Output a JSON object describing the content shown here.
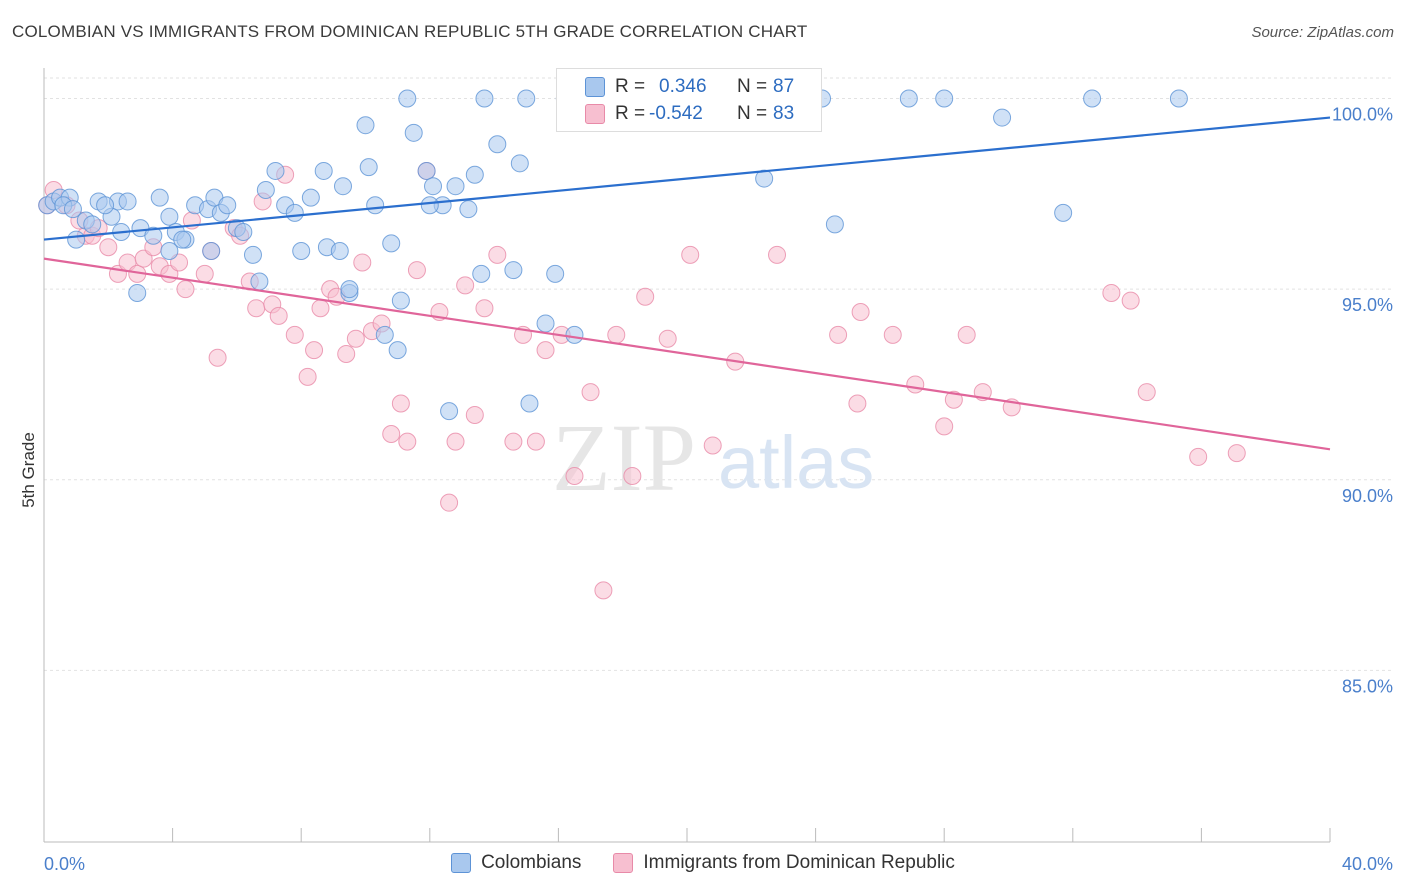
{
  "title": "COLOMBIAN VS IMMIGRANTS FROM DOMINICAN REPUBLIC 5TH GRADE CORRELATION CHART",
  "source": "Source: ZipAtlas.com",
  "watermark": {
    "zip": "ZIP",
    "atlas": "atlas"
  },
  "colors": {
    "blue_fill": "#a9c8ee",
    "blue_stroke": "#5d93d6",
    "blue_line": "#2b6fce",
    "pink_fill": "#f7bfd0",
    "pink_stroke": "#e88aa8",
    "pink_line": "#e0659a",
    "axis_label": "#4a7fcb",
    "grid": "#e2e2e2"
  },
  "stats": {
    "blue": {
      "r_label": "R =",
      "r_value": "0.346",
      "n_label": "N =",
      "n_value": "87"
    },
    "pink": {
      "r_label": "R =",
      "r_value": "-0.542",
      "n_label": "N =",
      "n_value": "83"
    }
  },
  "legend": {
    "blue": "Colombians",
    "pink": "Immigrants from Dominican Republic"
  },
  "chart_data": {
    "type": "scatter",
    "title": "COLOMBIAN VS IMMIGRANTS FROM DOMINICAN REPUBLIC 5TH GRADE CORRELATION CHART",
    "xlabel": "",
    "ylabel": "5th Grade",
    "xlim": [
      0,
      40
    ],
    "ylim": [
      80.5,
      100.8
    ],
    "x_tick_labels": [
      "0.0%",
      "40.0%"
    ],
    "y_ticks": [
      85,
      90,
      95,
      100
    ],
    "y_tick_labels": [
      "85.0%",
      "90.0%",
      "95.0%",
      "100.0%"
    ],
    "grid": true,
    "legend_position": "bottom",
    "series": [
      {
        "name": "Colombians",
        "trend": {
          "x": [
            0,
            40
          ],
          "y": [
            96.3,
            99.5
          ]
        },
        "points": [
          [
            0.1,
            97.2
          ],
          [
            0.3,
            97.3
          ],
          [
            0.5,
            97.4
          ],
          [
            0.8,
            97.4
          ],
          [
            0.6,
            97.2
          ],
          [
            1.3,
            96.8
          ],
          [
            1.0,
            96.3
          ],
          [
            1.7,
            97.3
          ],
          [
            2.3,
            97.3
          ],
          [
            2.6,
            97.3
          ],
          [
            2.1,
            96.9
          ],
          [
            2.4,
            96.5
          ],
          [
            3.0,
            96.6
          ],
          [
            3.4,
            96.4
          ],
          [
            3.6,
            97.4
          ],
          [
            3.9,
            96.9
          ],
          [
            4.1,
            96.5
          ],
          [
            4.4,
            96.3
          ],
          [
            4.3,
            96.3
          ],
          [
            4.7,
            97.2
          ],
          [
            5.1,
            97.1
          ],
          [
            5.3,
            97.4
          ],
          [
            5.5,
            97.0
          ],
          [
            5.7,
            97.2
          ],
          [
            6.0,
            96.6
          ],
          [
            6.2,
            96.5
          ],
          [
            6.5,
            95.9
          ],
          [
            6.9,
            97.6
          ],
          [
            7.2,
            98.1
          ],
          [
            7.5,
            97.2
          ],
          [
            7.8,
            97.0
          ],
          [
            8.3,
            97.4
          ],
          [
            8.0,
            96.0
          ],
          [
            8.8,
            96.1
          ],
          [
            8.7,
            98.1
          ],
          [
            9.2,
            96.0
          ],
          [
            9.3,
            97.7
          ],
          [
            9.5,
            94.9
          ],
          [
            9.5,
            95.0
          ],
          [
            10.1,
            98.2
          ],
          [
            10.3,
            97.2
          ],
          [
            10.6,
            93.8
          ],
          [
            10.8,
            96.2
          ],
          [
            11.1,
            94.7
          ],
          [
            11.0,
            93.4
          ],
          [
            11.3,
            100.0
          ],
          [
            11.5,
            99.1
          ],
          [
            11.9,
            98.1
          ],
          [
            12.1,
            97.7
          ],
          [
            12.4,
            97.2
          ],
          [
            12.6,
            91.8
          ],
          [
            12.8,
            97.7
          ],
          [
            13.2,
            97.1
          ],
          [
            13.4,
            98.0
          ],
          [
            13.6,
            95.4
          ],
          [
            13.7,
            100.0
          ],
          [
            14.1,
            98.8
          ],
          [
            14.6,
            95.5
          ],
          [
            15.0,
            100.0
          ],
          [
            14.8,
            98.3
          ],
          [
            15.1,
            92.0
          ],
          [
            15.6,
            94.1
          ],
          [
            15.9,
            95.4
          ],
          [
            16.2,
            100.0
          ],
          [
            16.5,
            93.8
          ],
          [
            17.3,
            100.0
          ],
          [
            18.0,
            100.0
          ],
          [
            19.4,
            100.0
          ],
          [
            20.2,
            100.0
          ],
          [
            22.4,
            97.9
          ],
          [
            24.2,
            100.0
          ],
          [
            24.6,
            96.7
          ],
          [
            26.9,
            100.0
          ],
          [
            28.0,
            100.0
          ],
          [
            29.8,
            99.5
          ],
          [
            31.7,
            97.0
          ],
          [
            32.6,
            100.0
          ],
          [
            35.3,
            100.0
          ],
          [
            3.9,
            96.0
          ],
          [
            2.9,
            94.9
          ],
          [
            1.5,
            96.7
          ],
          [
            0.9,
            97.1
          ],
          [
            6.7,
            95.2
          ],
          [
            10.0,
            99.3
          ],
          [
            12.0,
            97.2
          ],
          [
            5.2,
            96.0
          ],
          [
            1.9,
            97.2
          ]
        ]
      },
      {
        "name": "Immigrants from Dominican Republic",
        "trend": {
          "x": [
            0,
            40
          ],
          "y": [
            95.8,
            90.8
          ]
        },
        "points": [
          [
            0.1,
            97.2
          ],
          [
            0.3,
            97.6
          ],
          [
            0.7,
            97.2
          ],
          [
            1.1,
            96.8
          ],
          [
            1.3,
            96.4
          ],
          [
            1.5,
            96.4
          ],
          [
            1.7,
            96.6
          ],
          [
            2.0,
            96.1
          ],
          [
            2.3,
            95.4
          ],
          [
            2.6,
            95.7
          ],
          [
            2.9,
            95.4
          ],
          [
            3.1,
            95.8
          ],
          [
            3.4,
            96.1
          ],
          [
            3.6,
            95.6
          ],
          [
            3.9,
            95.4
          ],
          [
            4.2,
            95.7
          ],
          [
            4.4,
            95.0
          ],
          [
            4.6,
            96.8
          ],
          [
            5.0,
            95.4
          ],
          [
            5.2,
            96.0
          ],
          [
            5.4,
            93.2
          ],
          [
            5.9,
            96.6
          ],
          [
            6.1,
            96.4
          ],
          [
            6.4,
            95.2
          ],
          [
            6.6,
            94.5
          ],
          [
            6.8,
            97.3
          ],
          [
            7.1,
            94.6
          ],
          [
            7.3,
            94.3
          ],
          [
            7.5,
            98.0
          ],
          [
            7.8,
            93.8
          ],
          [
            8.2,
            92.7
          ],
          [
            8.4,
            93.4
          ],
          [
            8.6,
            94.5
          ],
          [
            8.9,
            95.0
          ],
          [
            9.1,
            94.8
          ],
          [
            9.4,
            93.3
          ],
          [
            9.7,
            93.7
          ],
          [
            9.9,
            95.7
          ],
          [
            10.2,
            93.9
          ],
          [
            10.5,
            94.1
          ],
          [
            10.8,
            91.2
          ],
          [
            11.1,
            92.0
          ],
          [
            11.3,
            91.0
          ],
          [
            11.6,
            95.5
          ],
          [
            11.9,
            98.1
          ],
          [
            12.3,
            94.4
          ],
          [
            12.6,
            89.4
          ],
          [
            12.8,
            91.0
          ],
          [
            13.1,
            95.1
          ],
          [
            13.4,
            91.7
          ],
          [
            13.7,
            94.5
          ],
          [
            14.1,
            95.9
          ],
          [
            14.6,
            91.0
          ],
          [
            14.9,
            93.8
          ],
          [
            15.3,
            91.0
          ],
          [
            15.6,
            93.4
          ],
          [
            16.1,
            93.8
          ],
          [
            16.5,
            90.1
          ],
          [
            17.0,
            92.3
          ],
          [
            17.4,
            87.1
          ],
          [
            17.8,
            93.8
          ],
          [
            18.3,
            90.1
          ],
          [
            18.7,
            94.8
          ],
          [
            19.4,
            93.7
          ],
          [
            20.1,
            95.9
          ],
          [
            20.8,
            90.9
          ],
          [
            21.5,
            93.1
          ],
          [
            22.8,
            95.9
          ],
          [
            24.7,
            93.8
          ],
          [
            25.3,
            92.0
          ],
          [
            25.4,
            94.4
          ],
          [
            26.4,
            93.8
          ],
          [
            27.1,
            92.5
          ],
          [
            28.0,
            91.4
          ],
          [
            28.3,
            92.1
          ],
          [
            28.7,
            93.8
          ],
          [
            29.2,
            92.3
          ],
          [
            30.1,
            91.9
          ],
          [
            33.2,
            94.9
          ],
          [
            33.8,
            94.7
          ],
          [
            34.3,
            92.3
          ],
          [
            35.9,
            90.6
          ],
          [
            37.1,
            90.7
          ]
        ]
      }
    ]
  }
}
